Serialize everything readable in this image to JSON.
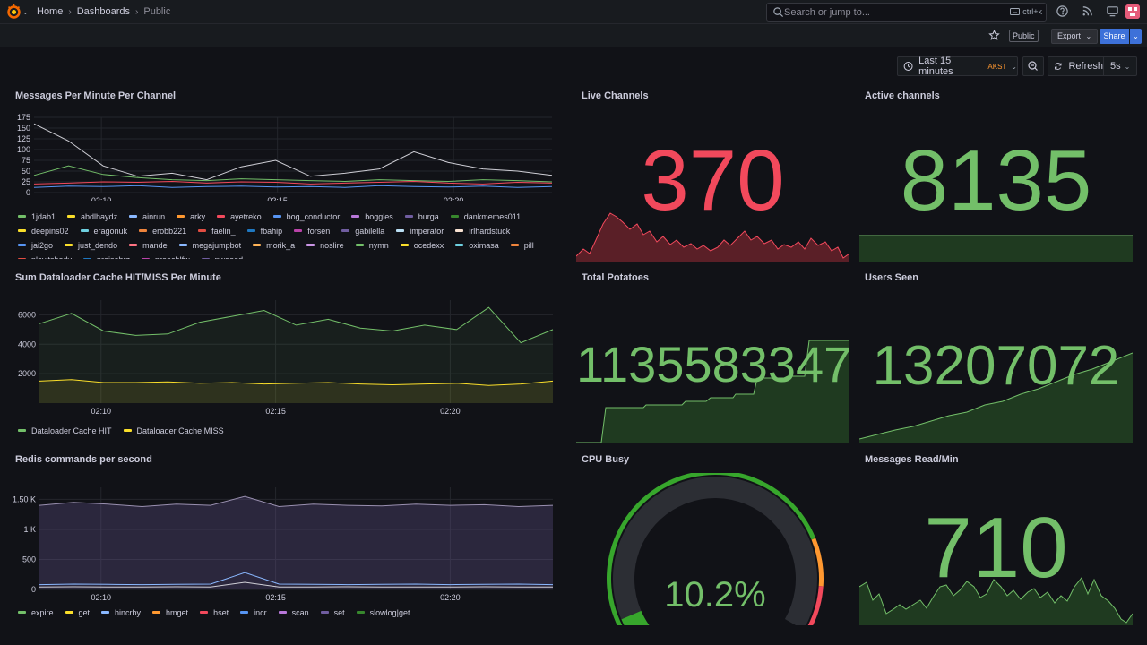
{
  "nav": {
    "breadcrumbs": [
      "Home",
      "Dashboards",
      "Public"
    ],
    "search_placeholder": "Search or jump to...",
    "search_shortcut": "ctrl+k"
  },
  "toolbar": {
    "public_badge": "Public",
    "export_label": "Export",
    "share_label": "Share"
  },
  "timebar": {
    "range_label": "Last 15 minutes",
    "timezone": "AKST",
    "refresh_label": "Refresh",
    "interval": "5s"
  },
  "colors": {
    "green": "#73bf69",
    "red": "#f2495c",
    "yellow": "#fade2a",
    "blue": "#5794f2",
    "orange": "#ff9830",
    "purple": "#b877d9"
  },
  "panels": {
    "messages_per_minute": {
      "title": "Messages Per Minute Per Channel",
      "legend": [
        {
          "name": "1jdab1",
          "color": "#73bf69"
        },
        {
          "name": "abdlhaydz",
          "color": "#fade2a"
        },
        {
          "name": "ainrun",
          "color": "#8ab8ff"
        },
        {
          "name": "arky",
          "color": "#ff9830"
        },
        {
          "name": "ayetreko",
          "color": "#f2495c"
        },
        {
          "name": "bog_conductor",
          "color": "#5794f2"
        },
        {
          "name": "boggles",
          "color": "#b877d9"
        },
        {
          "name": "burga",
          "color": "#705da0"
        },
        {
          "name": "dankmemes011",
          "color": "#37872d"
        },
        {
          "name": "deepins02",
          "color": "#fade2a"
        },
        {
          "name": "eragonuk",
          "color": "#6ed0e0"
        },
        {
          "name": "erobb221",
          "color": "#ef843c"
        },
        {
          "name": "faelin_",
          "color": "#e24d42"
        },
        {
          "name": "fbahip",
          "color": "#1f78c1"
        },
        {
          "name": "forsen",
          "color": "#ba43a9"
        },
        {
          "name": "gabilella",
          "color": "#705da0"
        },
        {
          "name": "imperator",
          "color": "#badff4"
        },
        {
          "name": "irlhardstuck",
          "color": "#f9e2d2"
        },
        {
          "name": "jai2go",
          "color": "#5794f2"
        },
        {
          "name": "just_dendo",
          "color": "#fade2a"
        },
        {
          "name": "mande",
          "color": "#ff7383"
        },
        {
          "name": "megajumpbot",
          "color": "#8ab8ff"
        },
        {
          "name": "morik_a",
          "color": "#ffb357"
        },
        {
          "name": "noslire",
          "color": "#ca95e5"
        },
        {
          "name": "nymn",
          "color": "#73bf69"
        },
        {
          "name": "ocedexx",
          "color": "#fade2a"
        },
        {
          "name": "oximasa",
          "color": "#6ed0e0"
        },
        {
          "name": "pill",
          "color": "#ef843c"
        },
        {
          "name": "playitshady",
          "color": "#e24d42"
        },
        {
          "name": "praisebrz",
          "color": "#1f78c1"
        },
        {
          "name": "preachlfw",
          "color": "#ba43a9"
        },
        {
          "name": "pwgood",
          "color": "#705da0"
        }
      ]
    },
    "live_channels": {
      "title": "Live Channels",
      "value": "370"
    },
    "active_channels": {
      "title": "Active channels",
      "value": "8135"
    },
    "cache": {
      "title": "Sum Dataloader Cache HIT/MISS Per Minute",
      "legend": [
        {
          "name": "Dataloader Cache HIT",
          "color": "#73bf69"
        },
        {
          "name": "Dataloader Cache MISS",
          "color": "#fade2a"
        }
      ]
    },
    "total_potatoes": {
      "title": "Total Potatoes",
      "value": "1135583347"
    },
    "users_seen": {
      "title": "Users Seen",
      "value": "13207072"
    },
    "redis": {
      "title": "Redis commands per second",
      "legend": [
        {
          "name": "expire",
          "color": "#73bf69"
        },
        {
          "name": "get",
          "color": "#fade2a"
        },
        {
          "name": "hincrby",
          "color": "#8ab8ff"
        },
        {
          "name": "hmget",
          "color": "#ff9830"
        },
        {
          "name": "hset",
          "color": "#f2495c"
        },
        {
          "name": "incr",
          "color": "#5794f2"
        },
        {
          "name": "scan",
          "color": "#b877d9"
        },
        {
          "name": "set",
          "color": "#705da0"
        },
        {
          "name": "slowlog|get",
          "color": "#37872d"
        }
      ]
    },
    "cpu_busy": {
      "title": "CPU Busy",
      "value": "10.2%",
      "percent": 10.2
    },
    "messages_read": {
      "title": "Messages Read/Min",
      "value": "710"
    }
  },
  "chart_data": [
    {
      "type": "line",
      "title": "Messages Per Minute Per Channel",
      "x": [
        "02:07:45",
        "02:08",
        "02:09",
        "02:10",
        "02:11",
        "02:12",
        "02:13",
        "02:14",
        "02:15",
        "02:16",
        "02:17",
        "02:18",
        "02:19",
        "02:20",
        "02:21",
        "02:22"
      ],
      "x_ticks": [
        "02:10",
        "02:15",
        "02:20"
      ],
      "y_ticks": [
        "0",
        "25",
        "50",
        "75",
        "100",
        "125",
        "150",
        "175"
      ],
      "ylim": [
        0,
        175
      ],
      "series": [
        {
          "name": "forsen",
          "values": [
            160,
            120,
            62,
            38,
            45,
            30,
            60,
            75,
            38,
            45,
            55,
            95,
            70,
            55,
            50,
            40
          ]
        },
        {
          "name": "1jdab1",
          "values": [
            40,
            62,
            42,
            35,
            30,
            28,
            32,
            30,
            28,
            26,
            30,
            28,
            26,
            30,
            28,
            25
          ]
        },
        {
          "name": "ayetreko",
          "values": [
            20,
            22,
            25,
            24,
            26,
            22,
            25,
            24,
            20,
            22,
            24,
            26,
            22,
            20,
            24,
            22
          ]
        },
        {
          "name": "bog_conductor",
          "values": [
            12,
            15,
            14,
            16,
            12,
            14,
            15,
            13,
            14,
            12,
            16,
            14,
            13,
            15,
            12,
            14
          ]
        }
      ]
    },
    {
      "type": "line",
      "title": "Sum Dataloader Cache HIT/MISS Per Minute",
      "x_ticks": [
        "02:10",
        "02:15",
        "02:20"
      ],
      "y_ticks": [
        "2000",
        "4000",
        "6000"
      ],
      "ylim": [
        0,
        7000
      ],
      "series": [
        {
          "name": "Dataloader Cache HIT",
          "values": [
            5400,
            6100,
            4900,
            4600,
            4700,
            5500,
            5900,
            6300,
            5300,
            5700,
            5100,
            4900,
            5300,
            5000,
            6500,
            4100,
            5000
          ]
        },
        {
          "name": "Dataloader Cache MISS",
          "values": [
            1500,
            1600,
            1400,
            1400,
            1450,
            1350,
            1400,
            1300,
            1350,
            1400,
            1300,
            1250,
            1300,
            1350,
            1200,
            1300,
            1500
          ]
        }
      ]
    },
    {
      "type": "area",
      "title": "Redis commands per second",
      "x_ticks": [
        "02:10",
        "02:15",
        "02:20"
      ],
      "y_ticks": [
        "0",
        "500",
        "1 K",
        "1.50 K"
      ],
      "ylim": [
        0,
        1700
      ],
      "series": [
        {
          "name": "get",
          "values": [
            1400,
            1450,
            1420,
            1380,
            1420,
            1400,
            1550,
            1380,
            1420,
            1400,
            1390,
            1420,
            1400,
            1410,
            1380,
            1400
          ]
        },
        {
          "name": "hincrby",
          "values": [
            80,
            90,
            85,
            80,
            85,
            90,
            280,
            90,
            85,
            80,
            85,
            90,
            80,
            85,
            90,
            80
          ]
        },
        {
          "name": "set",
          "values": [
            40,
            45,
            42,
            40,
            45,
            40,
            120,
            40,
            42,
            45,
            40,
            42,
            40,
            45,
            42,
            40
          ]
        }
      ]
    }
  ]
}
